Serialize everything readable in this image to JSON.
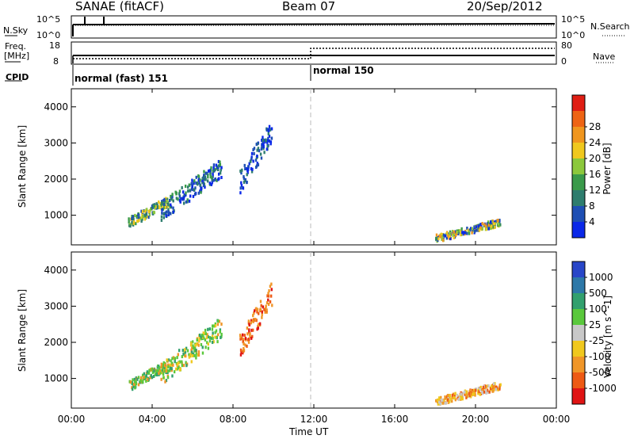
{
  "header": {
    "site": "SANAE (fitACF)",
    "beam": "Beam 07",
    "date": "20/Sep/2012"
  },
  "strip": {
    "nsky_label": "N.Sky",
    "nsky_top": "10^5",
    "nsky_bottom": "10^0",
    "nsearch_label": "N.Search",
    "nsearch_top": "10^5",
    "nsearch_bottom": "10^0",
    "freq_label_1": "Freq.",
    "freq_label_2": "[MHz]",
    "freq_top": "18",
    "freq_bottom": "8",
    "nave_label": "Nave",
    "nave_top": "80",
    "nave_bottom": "0",
    "cpid_label": "CPID",
    "cpid_1": "normal (fast) 151",
    "cpid_2": "normal 150"
  },
  "x_axis": {
    "label": "Time UT",
    "ticks": [
      "00:00",
      "04:00",
      "08:00",
      "12:00",
      "16:00",
      "20:00",
      "00:00"
    ]
  },
  "panels": {
    "ylabel": "Slant Range [km]",
    "yticks": [
      "1000",
      "2000",
      "3000",
      "4000"
    ]
  },
  "power_scale": {
    "label": "Power [dB]",
    "ticks": [
      "4",
      "8",
      "12",
      "16",
      "20",
      "24",
      "28"
    ],
    "colors": [
      "#0a28e8",
      "#1e4fb4",
      "#2e7d6e",
      "#3a9a4a",
      "#8cc83c",
      "#f0c81e",
      "#f0961e",
      "#ee6414",
      "#e01e14"
    ]
  },
  "velocity_scale": {
    "label": "Velocity [m s^-1]",
    "ticks": [
      "1000",
      "500",
      "100",
      "25",
      "-25",
      "-100",
      "-500",
      "-1000"
    ],
    "colors": [
      "#2846c8",
      "#2d78a8",
      "#32a06e",
      "#5ac83c",
      "#c8c8c8",
      "#f0c81e",
      "#f09628",
      "#ee5a14",
      "#e01414"
    ]
  },
  "chart_data": {
    "type": "heatmap",
    "x_unit": "hours UT",
    "xlim": [
      0,
      24
    ],
    "ylim": [
      180,
      4500
    ],
    "scatter_regions_power": [
      {
        "t0": 2.8,
        "t1": 4.8,
        "r0": 780,
        "r1": 1400,
        "level": "12-20 dB"
      },
      {
        "t0": 4.4,
        "t1": 7.4,
        "r0": 1100,
        "r1": 2300,
        "level": "8-16 dB"
      },
      {
        "t0": 8.3,
        "t1": 9.9,
        "r0": 1900,
        "r1": 3350,
        "level": "4-12 dB"
      },
      {
        "t0": 18.0,
        "t1": 21.2,
        "r0": 350,
        "r1": 800,
        "level": "8-20 dB"
      }
    ],
    "scatter_regions_velocity": [
      {
        "t0": 2.8,
        "t1": 4.8,
        "r0": 780,
        "r1": 1400,
        "level": "25 to 100 m/s"
      },
      {
        "t0": 4.4,
        "t1": 7.4,
        "r0": 1100,
        "r1": 2400,
        "level": "-100 to 100 m/s"
      },
      {
        "t0": 8.3,
        "t1": 9.9,
        "r0": 1900,
        "r1": 3350,
        "level": "-500 to -100 m/s"
      },
      {
        "t0": 18.0,
        "t1": 21.2,
        "r0": 350,
        "r1": 800,
        "level": "-500 to -25 m/s"
      }
    ],
    "freq_mhz": [
      {
        "t0": 0,
        "t1": 24,
        "value": 10.5
      }
    ],
    "nave": [
      {
        "t0": 0,
        "t1": 12,
        "value": 22
      },
      {
        "t0": 12,
        "t1": 24,
        "value": 54
      }
    ],
    "cpid": [
      {
        "t0": 0,
        "t1": 12,
        "value": 151
      },
      {
        "t0": 12,
        "t1": 24,
        "value": 150
      }
    ]
  }
}
